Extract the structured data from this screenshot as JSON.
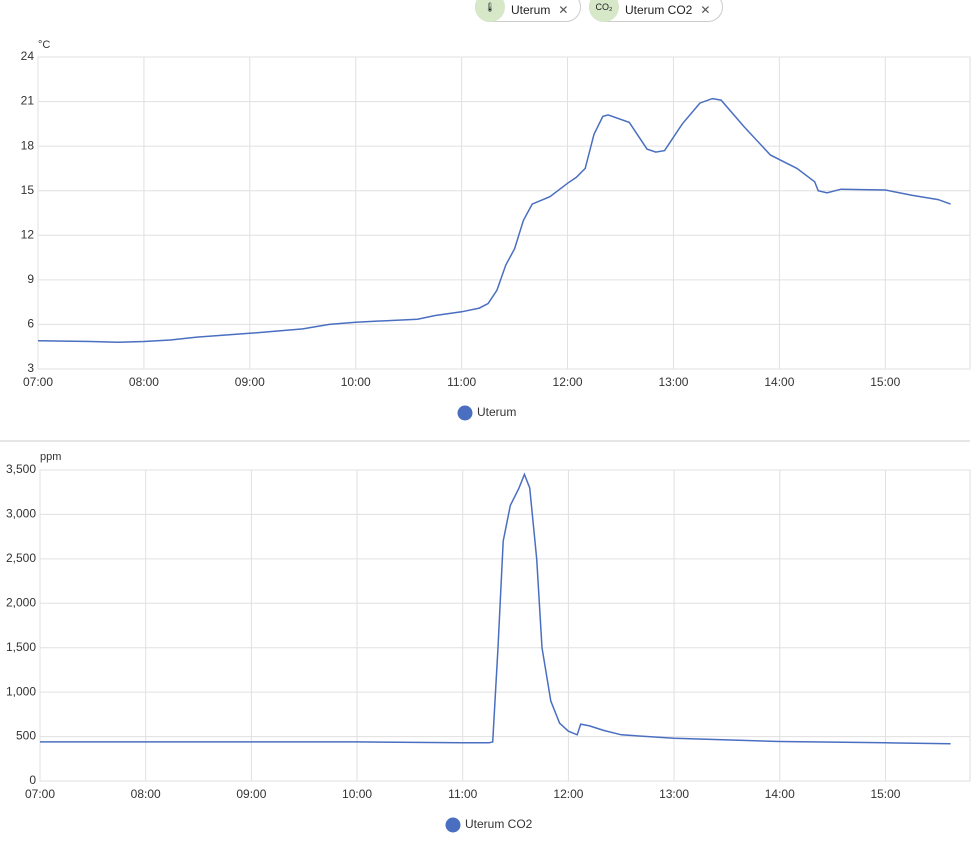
{
  "chips": [
    {
      "label": "Uterum"
    },
    {
      "label": "Uterum CO2"
    }
  ],
  "chart_data": [
    {
      "type": "line",
      "y_unit": "°C",
      "x": [
        "07:00",
        "07:30",
        "07:45",
        "08:00",
        "08:15",
        "08:30",
        "09:00",
        "09:30",
        "09:45",
        "10:00",
        "10:35",
        "10:45",
        "11:00",
        "11:10",
        "11:15",
        "11:20",
        "11:25",
        "11:30",
        "11:35",
        "11:40",
        "11:50",
        "12:00",
        "12:05",
        "12:10",
        "12:15",
        "12:20",
        "12:23",
        "12:35",
        "12:45",
        "12:50",
        "12:55",
        "13:05",
        "13:15",
        "13:22",
        "13:27",
        "13:40",
        "13:55",
        "14:10",
        "14:20",
        "14:22",
        "14:27",
        "14:35",
        "15:00",
        "15:15",
        "15:30",
        "15:37"
      ],
      "series": [
        {
          "name": "Uterum",
          "color": "#4a6fc0",
          "values": [
            4.9,
            4.85,
            4.8,
            4.85,
            4.95,
            5.15,
            5.4,
            5.7,
            6.0,
            6.15,
            6.35,
            6.6,
            6.85,
            7.1,
            7.4,
            8.3,
            10.0,
            11.1,
            13.0,
            14.1,
            14.6,
            15.5,
            15.9,
            16.5,
            18.8,
            20.0,
            20.1,
            19.6,
            17.8,
            17.6,
            17.7,
            19.5,
            20.9,
            21.2,
            21.1,
            19.3,
            17.4,
            16.5,
            15.6,
            15.0,
            14.85,
            15.1,
            15.05,
            14.7,
            14.4,
            14.1
          ]
        }
      ],
      "xlim": [
        "07:00",
        "15:48"
      ],
      "xticks": [
        "07:00",
        "08:00",
        "09:00",
        "10:00",
        "11:00",
        "12:00",
        "13:00",
        "14:00",
        "15:00"
      ],
      "ylim": [
        3,
        24
      ],
      "yticks": [
        3,
        6,
        9,
        12,
        15,
        18,
        21,
        24
      ],
      "grid": true,
      "legend": "bottom"
    },
    {
      "type": "line",
      "y_unit": "ppm",
      "x": [
        "07:00",
        "08:00",
        "09:00",
        "10:00",
        "11:00",
        "11:15",
        "11:17",
        "11:20",
        "11:23",
        "11:27",
        "11:32",
        "11:35",
        "11:38",
        "11:42",
        "11:45",
        "11:50",
        "11:55",
        "12:00",
        "12:05",
        "12:07",
        "12:12",
        "12:20",
        "12:30",
        "13:00",
        "14:00",
        "15:00",
        "15:37"
      ],
      "series": [
        {
          "name": "Uterum CO2",
          "color": "#4a6fc0",
          "values": [
            440,
            440,
            440,
            440,
            430,
            430,
            440,
            1500,
            2700,
            3100,
            3300,
            3450,
            3300,
            2500,
            1500,
            900,
            650,
            560,
            520,
            640,
            620,
            570,
            520,
            480,
            445,
            430,
            420
          ]
        }
      ],
      "xlim": [
        "07:00",
        "15:48"
      ],
      "xticks": [
        "07:00",
        "08:00",
        "09:00",
        "10:00",
        "11:00",
        "12:00",
        "13:00",
        "14:00",
        "15:00"
      ],
      "ylim": [
        0,
        3500
      ],
      "yticks": [
        0,
        500,
        {
          "value": 1000,
          "label": "1,000"
        },
        {
          "value": 1500,
          "label": "1,500"
        },
        {
          "value": 2000,
          "label": "2,000"
        },
        {
          "value": 2500,
          "label": "2,500"
        },
        {
          "value": 3000,
          "label": "3,000"
        },
        {
          "value": 3500,
          "label": "3,500"
        }
      ],
      "grid": true,
      "legend": "bottom"
    }
  ]
}
